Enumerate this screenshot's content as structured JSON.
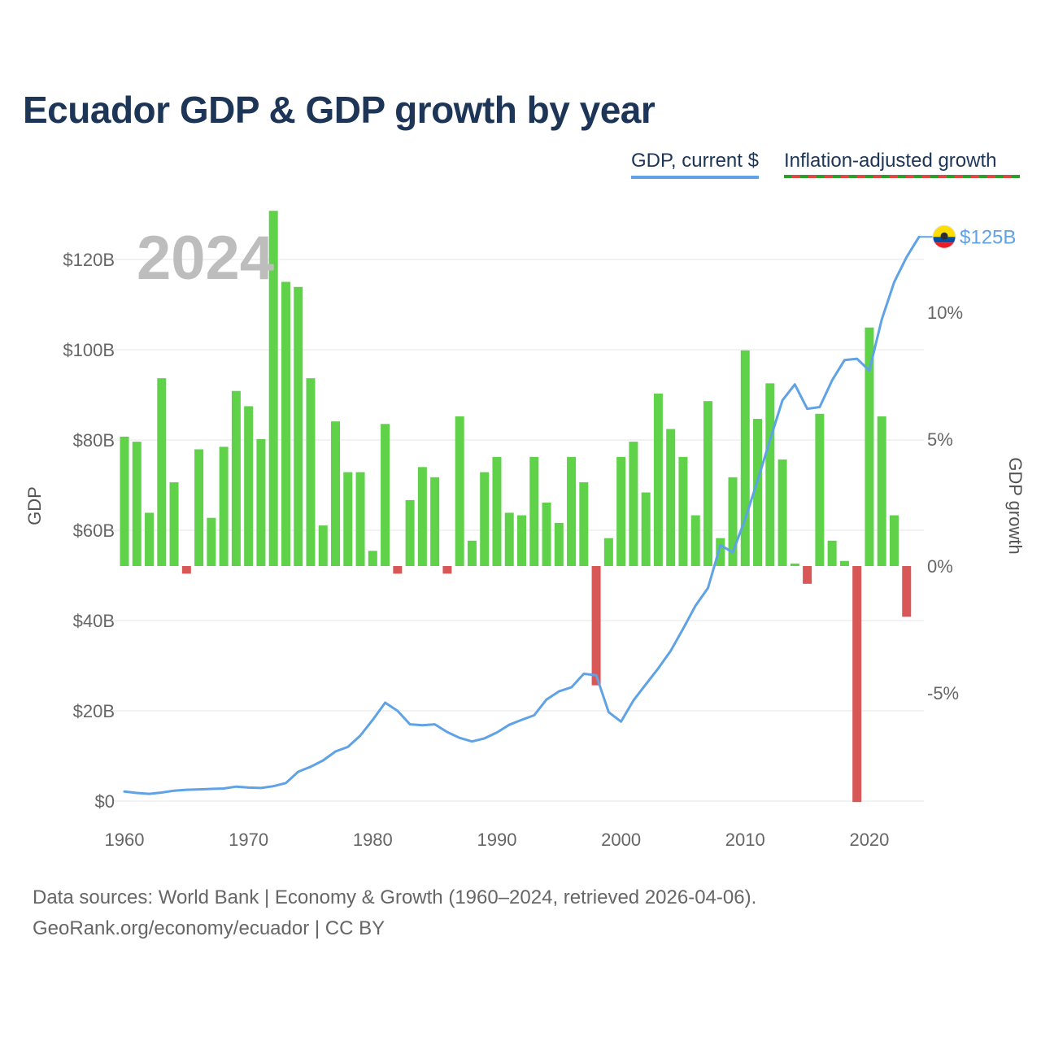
{
  "title": "Ecuador GDP & GDP growth by year",
  "legend": {
    "gdp_label": "GDP, current $",
    "growth_label": "Inflation-adjusted growth"
  },
  "footer": {
    "line1": "Data sources: World Bank | Economy & Growth (1960–2024, retrieved 2026-04-06).",
    "line2": "GeoRank.org/economy/ecuador | CC BY"
  },
  "colors": {
    "line": "#5fa2e6",
    "positive": "#5fd24a",
    "negative": "#d85858",
    "grid": "#e6e6e6",
    "title": "#1d3557"
  },
  "chart_data": {
    "type": "bar+line",
    "current_year_label": "2024",
    "end_label": "$125B",
    "left_axis": {
      "title": "GDP",
      "range": [
        0,
        140
      ],
      "ticks": [
        0,
        20,
        40,
        60,
        80,
        100,
        120
      ],
      "tick_labels": [
        "$0",
        "$20B",
        "$40B",
        "$60B",
        "$80B",
        "$100B",
        "$120B"
      ]
    },
    "right_axis": {
      "title": "GDP growth",
      "range": [
        -9.3,
        13.0
      ],
      "ticks": [
        -5,
        0,
        5,
        10
      ],
      "tick_labels": [
        "-5%",
        "0%",
        "5%",
        "10%"
      ]
    },
    "x_axis": {
      "range": [
        1960,
        2024
      ],
      "ticks": [
        1960,
        1970,
        1980,
        1990,
        2000,
        2010,
        2020
      ],
      "tick_labels": [
        "1960",
        "1970",
        "1980",
        "1990",
        "2000",
        "2010",
        "2020"
      ]
    },
    "years": [
      1960,
      1961,
      1962,
      1963,
      1964,
      1965,
      1966,
      1967,
      1968,
      1969,
      1970,
      1971,
      1972,
      1973,
      1974,
      1975,
      1976,
      1977,
      1978,
      1979,
      1980,
      1981,
      1982,
      1983,
      1984,
      1985,
      1986,
      1987,
      1988,
      1989,
      1990,
      1991,
      1992,
      1993,
      1994,
      1995,
      1996,
      1997,
      1998,
      1999,
      2000,
      2001,
      2002,
      2003,
      2004,
      2005,
      2006,
      2007,
      2008,
      2009,
      2010,
      2011,
      2012,
      2013,
      2014,
      2015,
      2016,
      2017,
      2018,
      2019,
      2020,
      2021,
      2022,
      2023,
      2024
    ],
    "series": [
      {
        "name": "GDP, current $",
        "unit": "billion USD",
        "values": [
          2.1,
          1.8,
          1.6,
          1.9,
          2.3,
          2.5,
          2.6,
          2.7,
          2.8,
          3.2,
          3.0,
          2.9,
          3.3,
          4.0,
          6.5,
          7.6,
          9.0,
          11.0,
          12.0,
          14.5,
          18.0,
          21.8,
          20.0,
          17.0,
          16.8,
          17.0,
          15.3,
          14.0,
          13.2,
          13.9,
          15.2,
          16.9,
          18.0,
          19.0,
          22.5,
          24.3,
          25.2,
          28.2,
          27.9,
          19.7,
          17.6,
          22.3,
          25.9,
          29.4,
          33.3,
          38.2,
          43.3,
          47.2,
          56.7,
          55.1,
          62.5,
          71.0,
          80.0,
          88.8,
          92.3,
          86.9,
          87.3,
          93.2,
          97.7,
          98.0,
          95.4,
          106.7,
          115.0,
          120.5,
          125.0
        ]
      },
      {
        "name": "Inflation-adjusted growth",
        "unit": "percent",
        "values": [
          5.1,
          4.9,
          2.1,
          7.4,
          3.3,
          -0.3,
          4.6,
          1.9,
          4.7,
          6.9,
          6.3,
          5.0,
          14.0,
          11.2,
          11.0,
          7.4,
          1.6,
          5.7,
          3.7,
          3.7,
          0.6,
          5.6,
          -0.3,
          2.6,
          3.9,
          3.5,
          -0.3,
          5.9,
          1.0,
          3.7,
          4.3,
          2.1,
          2.0,
          4.3,
          2.5,
          1.7,
          4.3,
          3.3,
          -4.7,
          1.1,
          4.3,
          4.9,
          2.9,
          6.8,
          5.4,
          4.3,
          2.0,
          6.5,
          1.1,
          3.5,
          8.5,
          5.8,
          7.2,
          4.2,
          0.1,
          -0.7,
          6.0,
          1.0,
          0.2,
          -9.3,
          9.4,
          5.9,
          2.0,
          -2.0
        ]
      }
    ]
  }
}
